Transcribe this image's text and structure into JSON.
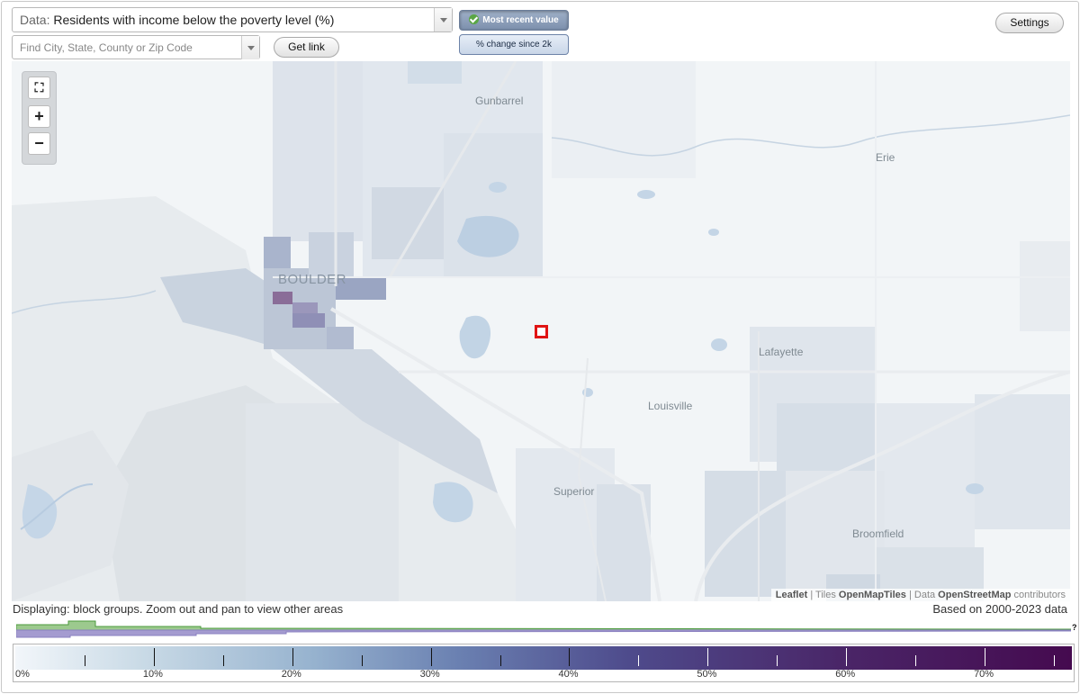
{
  "data_select": {
    "prefix": "Data:",
    "value": "Residents with income below the poverty level (%)"
  },
  "search": {
    "placeholder": "Find City, State, County or Zip Code"
  },
  "buttons": {
    "get_link": "Get link",
    "settings": "Settings"
  },
  "toggles": {
    "most_recent": "Most recent value",
    "pct_change": "% change since 2k"
  },
  "zoom": {
    "fit": "⛶",
    "zoom_in": "+",
    "zoom_out": "−"
  },
  "places": {
    "gunbarrel": "Gunbarrel",
    "erie": "Erie",
    "boulder": "BOULDER",
    "lafayette": "Lafayette",
    "louisville": "Louisville",
    "superior": "Superior",
    "broomfield": "Broomfield"
  },
  "attribution": {
    "leaflet": "Leaflet",
    "sep1": " | Tiles ",
    "tiles": "OpenMapTiles",
    "sep2": " | Data ",
    "osm": "OpenStreetMap",
    "tail": " contributors"
  },
  "status": {
    "displaying": "Displaying: block groups. Zoom out and pan to view other areas",
    "based_on": "Based on 2000-2023 data"
  },
  "histogram_unknown": "?",
  "legend": {
    "labels": [
      "0%",
      "10%",
      "20%",
      "30%",
      "40%",
      "50%",
      "60%",
      "70%"
    ],
    "max_value": 76.3,
    "colors": [
      "#f2f6fa",
      "#97b3cf",
      "#6a80b1",
      "#4e4b8c",
      "#450a4f"
    ]
  }
}
